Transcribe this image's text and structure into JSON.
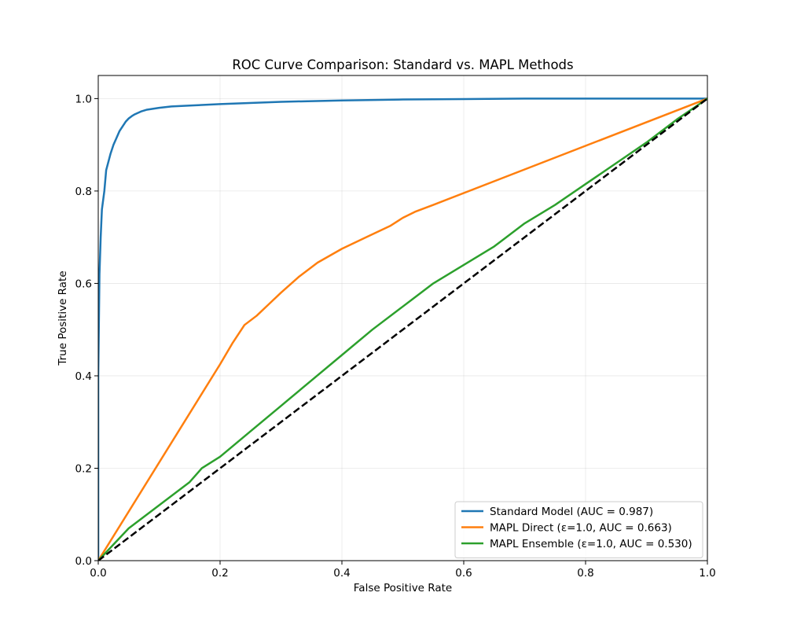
{
  "chart_data": {
    "type": "line",
    "title": "ROC Curve Comparison: Standard vs. MAPL Methods",
    "xlabel": "False Positive Rate",
    "ylabel": "True Positive Rate",
    "xlim": [
      0.0,
      1.0
    ],
    "ylim": [
      0.0,
      1.05
    ],
    "xticks": [
      0.0,
      0.2,
      0.4,
      0.6,
      0.8,
      1.0
    ],
    "yticks": [
      0.0,
      0.2,
      0.4,
      0.6,
      0.8,
      1.0
    ],
    "xtick_labels": [
      "0.0",
      "0.2",
      "0.4",
      "0.6",
      "0.8",
      "1.0"
    ],
    "ytick_labels": [
      "0.0",
      "0.2",
      "0.4",
      "0.6",
      "0.8",
      "1.0"
    ],
    "grid": true,
    "legend_position": "lower-right",
    "series": [
      {
        "name": "Standard Model (AUC = 0.987)",
        "color": "#1f77b4",
        "style": "solid",
        "x": [
          0.0,
          0.0,
          0.002,
          0.004,
          0.006,
          0.008,
          0.01,
          0.013,
          0.016,
          0.02,
          0.025,
          0.03,
          0.035,
          0.04,
          0.045,
          0.05,
          0.055,
          0.06,
          0.07,
          0.08,
          0.1,
          0.12,
          0.15,
          0.2,
          0.3,
          0.4,
          0.5,
          0.6,
          0.7,
          0.8,
          0.9,
          1.0
        ],
        "y": [
          0.0,
          0.4,
          0.62,
          0.7,
          0.76,
          0.78,
          0.8,
          0.845,
          0.86,
          0.88,
          0.9,
          0.915,
          0.93,
          0.94,
          0.95,
          0.957,
          0.962,
          0.966,
          0.972,
          0.976,
          0.98,
          0.983,
          0.985,
          0.988,
          0.993,
          0.996,
          0.998,
          0.999,
          1.0,
          1.0,
          1.0,
          1.0
        ]
      },
      {
        "name": "MAPL Direct (ε=1.0, AUC = 0.663)",
        "color": "#ff7f0e",
        "style": "solid",
        "x": [
          0.0,
          0.2,
          0.22,
          0.24,
          0.26,
          0.28,
          0.3,
          0.33,
          0.36,
          0.4,
          0.44,
          0.48,
          0.5,
          0.52,
          0.55,
          1.0
        ],
        "y": [
          0.0,
          0.425,
          0.47,
          0.51,
          0.53,
          0.555,
          0.58,
          0.615,
          0.645,
          0.675,
          0.7,
          0.725,
          0.742,
          0.755,
          0.77,
          1.0
        ]
      },
      {
        "name": "MAPL Ensemble (ε=1.0, AUC = 0.530)",
        "color": "#2ca02c",
        "style": "solid",
        "x": [
          0.0,
          0.05,
          0.1,
          0.15,
          0.17,
          0.2,
          0.25,
          0.3,
          0.35,
          0.4,
          0.45,
          0.5,
          0.55,
          0.6,
          0.65,
          0.7,
          0.75,
          0.8,
          0.85,
          0.9,
          0.95,
          1.0
        ],
        "y": [
          0.0,
          0.07,
          0.12,
          0.17,
          0.2,
          0.225,
          0.28,
          0.335,
          0.39,
          0.445,
          0.5,
          0.55,
          0.6,
          0.64,
          0.68,
          0.73,
          0.77,
          0.815,
          0.86,
          0.905,
          0.955,
          1.0
        ]
      },
      {
        "name": "",
        "color": "#000000",
        "style": "dashed",
        "x": [
          0.0,
          1.0
        ],
        "y": [
          0.0,
          1.0
        ]
      }
    ]
  }
}
